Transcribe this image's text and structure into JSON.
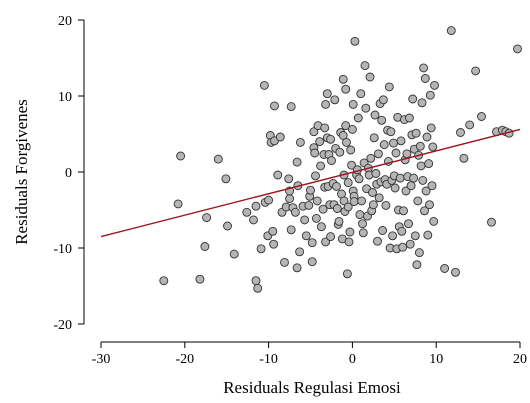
{
  "chart_data": {
    "type": "scatter",
    "xlabel": "Residuals Regulasi Emosi",
    "ylabel": "Residuals Forgivenes",
    "xlim": [
      -30,
      20
    ],
    "ylim": [
      -20,
      20
    ],
    "xticks": [
      -30,
      -20,
      -10,
      0,
      10,
      20
    ],
    "yticks": [
      -20,
      -10,
      0,
      10,
      20
    ],
    "grid": false,
    "point_color": "#b5b5b5",
    "fit_line": {
      "color": "#a0141e",
      "x": [
        -30,
        20
      ],
      "y": [
        -8.5,
        5.6
      ]
    },
    "points": [
      [
        -22.5,
        -14.3
      ],
      [
        -20.8,
        -4.2
      ],
      [
        -20.5,
        2.1
      ],
      [
        -18.2,
        -14.1
      ],
      [
        -17.6,
        -9.8
      ],
      [
        -17.4,
        -6
      ],
      [
        -16,
        1.7
      ],
      [
        -15.1,
        -0.9
      ],
      [
        -14.9,
        -7.1
      ],
      [
        -14.1,
        -10.8
      ],
      [
        -12.6,
        -5.3
      ],
      [
        -11.8,
        -6.3
      ],
      [
        -11.5,
        -4.5
      ],
      [
        -11.5,
        -14.3
      ],
      [
        -11.3,
        -15.3
      ],
      [
        -10.9,
        -10.1
      ],
      [
        -10.5,
        11.4
      ],
      [
        -10.4,
        -4
      ],
      [
        -10.1,
        -8.4
      ],
      [
        -10,
        -3.7
      ],
      [
        -9.8,
        4.8
      ],
      [
        -9.7,
        3.9
      ],
      [
        -9.5,
        -7.8
      ],
      [
        -9.4,
        -9.5
      ],
      [
        -9.3,
        8.7
      ],
      [
        -9.3,
        4.1
      ],
      [
        -8.9,
        -0.4
      ],
      [
        -8.6,
        4.6
      ],
      [
        -8.4,
        -5.3
      ],
      [
        -8.1,
        -11.9
      ],
      [
        -7.9,
        -4.6
      ],
      [
        -7.6,
        -0.9
      ],
      [
        -7.5,
        -3.5
      ],
      [
        -7.5,
        -2.5
      ],
      [
        -7.3,
        -7.6
      ],
      [
        -7.3,
        8.6
      ],
      [
        -7.1,
        -4.7
      ],
      [
        -6.8,
        -5.3
      ],
      [
        -6.6,
        -12.6
      ],
      [
        -6.6,
        1.3
      ],
      [
        -6.5,
        -1.8
      ],
      [
        -6.3,
        -10.5
      ],
      [
        -6.2,
        3.9
      ],
      [
        -5.9,
        -4.5
      ],
      [
        -5.7,
        -6.3
      ],
      [
        -5.5,
        -8.4
      ],
      [
        -5.2,
        -4.4
      ],
      [
        -5.1,
        -3.2
      ],
      [
        -5,
        -2.4
      ],
      [
        -4.8,
        -11.8
      ],
      [
        -4.8,
        -9.3
      ],
      [
        -4.6,
        5.3
      ],
      [
        -4.6,
        3.2
      ],
      [
        -4.5,
        2.5
      ],
      [
        -4.4,
        -0.5
      ],
      [
        -4.3,
        -6.1
      ],
      [
        -4.2,
        -3.8
      ],
      [
        -4.1,
        6.1
      ],
      [
        -3.9,
        4
      ],
      [
        -3.8,
        0.8
      ],
      [
        -3.7,
        -7.2
      ],
      [
        -3.5,
        -4.9
      ],
      [
        -3.4,
        2.3
      ],
      [
        -3.3,
        5.8
      ],
      [
        -3.3,
        -2
      ],
      [
        -3.2,
        -9.2
      ],
      [
        -3.2,
        8.9
      ],
      [
        -3,
        10.3
      ],
      [
        -3,
        4.5
      ],
      [
        -2.9,
        -1.9
      ],
      [
        -2.8,
        2.3
      ],
      [
        -2.7,
        -4.3
      ],
      [
        -2.6,
        4.3
      ],
      [
        -2.6,
        -8.5
      ],
      [
        -2.5,
        1.5
      ],
      [
        -2.3,
        -1.5
      ],
      [
        -2.2,
        -4.3
      ],
      [
        -2.1,
        9.5
      ],
      [
        -2,
        3.1
      ],
      [
        -1.9,
        -1.9
      ],
      [
        -1.8,
        -4.8
      ],
      [
        -1.7,
        -6.9
      ],
      [
        -1.6,
        -6.5
      ],
      [
        -1.5,
        2.6
      ],
      [
        -1.4,
        5.2
      ],
      [
        -1.3,
        -2.9
      ],
      [
        -1.2,
        -8.8
      ],
      [
        -1.1,
        12.2
      ],
      [
        -1.1,
        4.8
      ],
      [
        -1,
        -0.4
      ],
      [
        -1,
        -3.8
      ],
      [
        -0.9,
        -5.2
      ],
      [
        -0.8,
        10.9
      ],
      [
        -0.8,
        6.1
      ],
      [
        -0.7,
        3.9
      ],
      [
        -0.6,
        -13.4
      ],
      [
        -0.5,
        -1.4
      ],
      [
        -0.5,
        -4.6
      ],
      [
        -0.4,
        -9.2
      ],
      [
        -0.3,
        -7.9
      ],
      [
        -0.2,
        2.9
      ],
      [
        -0.1,
        0.9
      ],
      [
        0,
        5.6
      ],
      [
        0.1,
        8.9
      ],
      [
        0.1,
        -2.5
      ],
      [
        0.2,
        -3.2
      ],
      [
        0.2,
        -3.9
      ],
      [
        0.3,
        17.2
      ],
      [
        0.5,
        -0.4
      ],
      [
        0.6,
        0.3
      ],
      [
        0.7,
        7.1
      ],
      [
        0.8,
        -0.9
      ],
      [
        0.9,
        -5.6
      ],
      [
        1,
        10.3
      ],
      [
        1.1,
        -3.8
      ],
      [
        1.2,
        -6.8
      ],
      [
        1.3,
        -8
      ],
      [
        1.4,
        1.2
      ],
      [
        1.5,
        14
      ],
      [
        1.6,
        8.4
      ],
      [
        1.7,
        -2.2
      ],
      [
        1.8,
        -5.8
      ],
      [
        1.9,
        0.5
      ],
      [
        2,
        -0.4
      ],
      [
        2.1,
        12.5
      ],
      [
        2.2,
        1.8
      ],
      [
        2.3,
        -5.1
      ],
      [
        2.4,
        -2.7
      ],
      [
        2.5,
        -4.3
      ],
      [
        2.6,
        4.5
      ],
      [
        2.7,
        7.5
      ],
      [
        2.8,
        -0.2
      ],
      [
        2.9,
        -1.6
      ],
      [
        3,
        -9.1
      ],
      [
        3.1,
        2.4
      ],
      [
        3.2,
        -3.4
      ],
      [
        3.3,
        9
      ],
      [
        3.4,
        -1.3
      ],
      [
        3.5,
        6.8
      ],
      [
        3.6,
        -7.7
      ],
      [
        3.7,
        9.5
      ],
      [
        3.8,
        3.6
      ],
      [
        3.9,
        -1
      ],
      [
        4,
        -4.4
      ],
      [
        4.1,
        -1.6
      ],
      [
        4.2,
        5.5
      ],
      [
        4.3,
        1.4
      ],
      [
        4.4,
        11.2
      ],
      [
        4.5,
        -10
      ],
      [
        4.6,
        5.3
      ],
      [
        4.7,
        -1.1
      ],
      [
        4.8,
        -8.4
      ],
      [
        4.9,
        3.8
      ],
      [
        5,
        -0.5
      ],
      [
        5.1,
        -2.1
      ],
      [
        5.2,
        2.5
      ],
      [
        5.3,
        -10.1
      ],
      [
        5.4,
        7.2
      ],
      [
        5.5,
        -5
      ],
      [
        5.6,
        -7.2
      ],
      [
        5.7,
        -0.8
      ],
      [
        5.8,
        4.1
      ],
      [
        5.9,
        -7.8
      ],
      [
        6,
        -9.9
      ],
      [
        6.1,
        -5.1
      ],
      [
        6.2,
        6.9
      ],
      [
        6.3,
        1.6
      ],
      [
        6.4,
        -2.5
      ],
      [
        6.5,
        2.4
      ],
      [
        6.6,
        -0.6
      ],
      [
        6.7,
        -6.8
      ],
      [
        6.8,
        7.1
      ],
      [
        6.9,
        -9.5
      ],
      [
        7,
        -1.8
      ],
      [
        7.1,
        4.9
      ],
      [
        7.2,
        9.6
      ],
      [
        7.3,
        -0.8
      ],
      [
        7.4,
        3
      ],
      [
        7.5,
        -8.4
      ],
      [
        7.6,
        5.1
      ],
      [
        7.7,
        -12.2
      ],
      [
        7.8,
        -3.8
      ],
      [
        7.9,
        2.2
      ],
      [
        8,
        -10.6
      ],
      [
        8.1,
        3.4
      ],
      [
        8.2,
        0.8
      ],
      [
        8.3,
        9.1
      ],
      [
        8.4,
        -1.1
      ],
      [
        8.5,
        13.7
      ],
      [
        8.6,
        -5.1
      ],
      [
        8.7,
        12.3
      ],
      [
        8.8,
        -2.5
      ],
      [
        8.9,
        4.6
      ],
      [
        9,
        -8.3
      ],
      [
        9.1,
        1.1
      ],
      [
        9.2,
        -4.3
      ],
      [
        9.3,
        10.1
      ],
      [
        9.4,
        5.8
      ],
      [
        9.5,
        -1.8
      ],
      [
        9.6,
        3.3
      ],
      [
        9.7,
        -6.5
      ],
      [
        9.8,
        11.4
      ],
      [
        11,
        -12.7
      ],
      [
        12.3,
        -13.2
      ],
      [
        13.3,
        1.8
      ],
      [
        14,
        6.2
      ],
      [
        14.7,
        13.3
      ],
      [
        15.4,
        7.3
      ],
      [
        16.6,
        -6.6
      ],
      [
        17.2,
        5.3
      ],
      [
        17.9,
        5.5
      ],
      [
        18.3,
        5.3
      ],
      [
        18.7,
        5.1
      ],
      [
        19.7,
        16.2
      ],
      [
        11.8,
        18.6
      ],
      [
        12.9,
        5.2
      ]
    ]
  }
}
